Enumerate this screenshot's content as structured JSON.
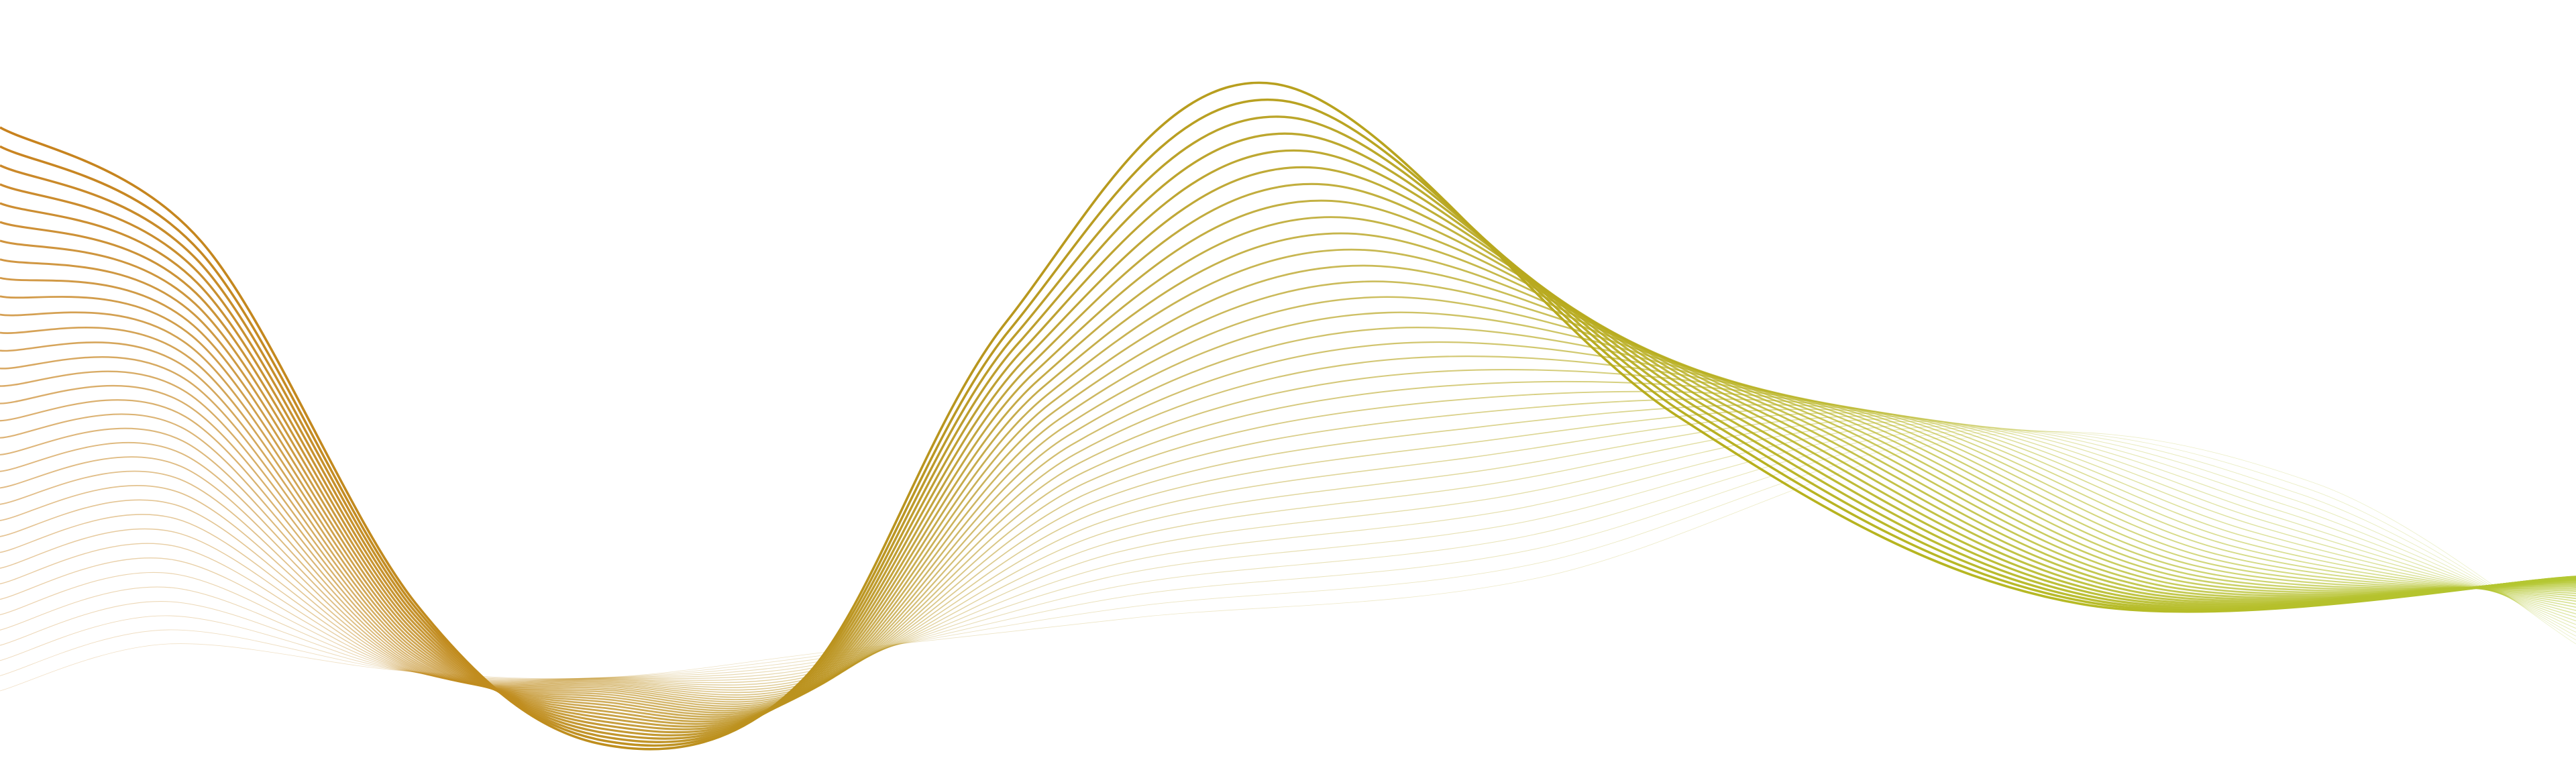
{
  "artwork": {
    "description_name": "abstract-wave-lines",
    "colors": {
      "background": "#ffffff",
      "orange": "#c8821e",
      "gold": "#b8961e",
      "olive": "#b7b21e",
      "lime": "#b4c832"
    },
    "line_count": 34
  }
}
